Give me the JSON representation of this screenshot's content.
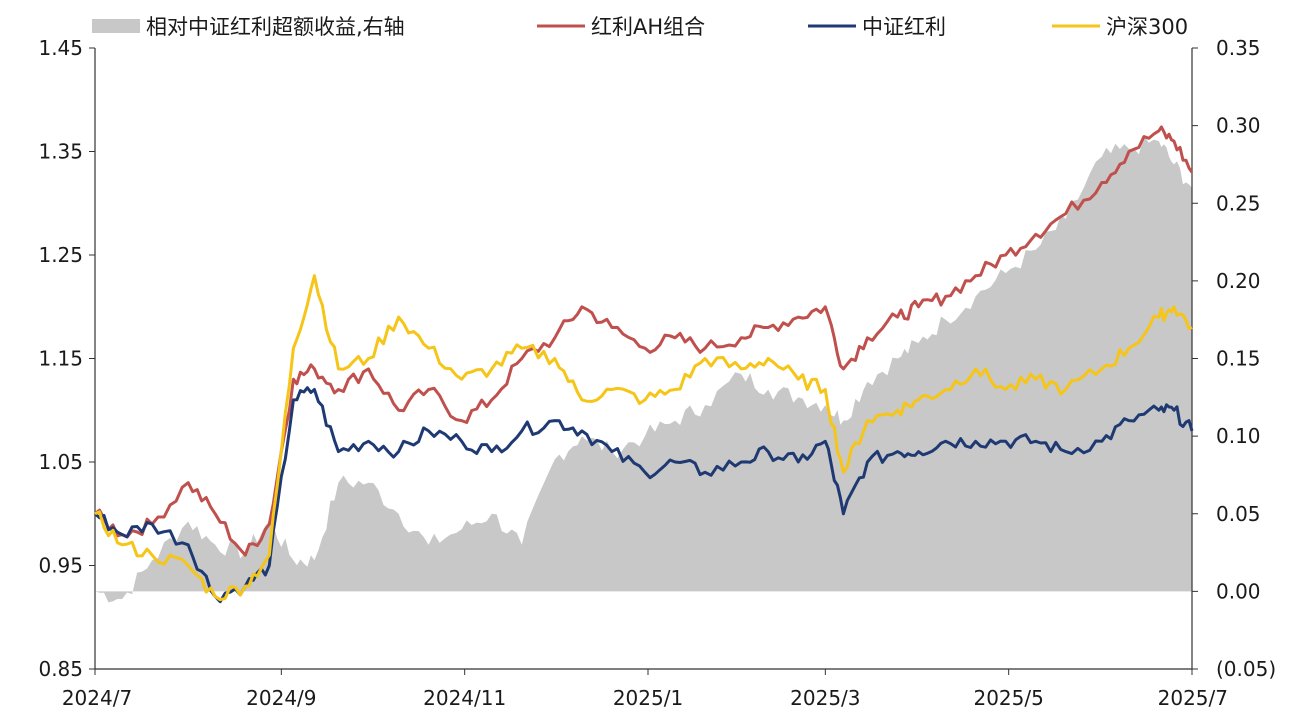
{
  "chart_data": {
    "type": "line",
    "legend_position": "top",
    "grid": false,
    "x_axis": {
      "range": [
        "2024-07",
        "2025-07"
      ],
      "tick_labels": [
        "2024/7",
        "2024/9",
        "2024/11",
        "2025/1",
        "2025/3",
        "2025/5",
        "2025/7"
      ]
    },
    "y_left": {
      "range": [
        0.85,
        1.45
      ],
      "tick_labels": [
        "0.85",
        "0.95",
        "1.05",
        "1.15",
        "1.25",
        "1.35",
        "1.45"
      ]
    },
    "y_right": {
      "range": [
        -0.05,
        0.35
      ],
      "tick_labels": [
        "(0.05)",
        "0.00",
        "0.05",
        "0.10",
        "0.15",
        "0.20",
        "0.25",
        "0.30",
        "0.35"
      ],
      "negative_color": "#c0392b"
    },
    "series": [
      {
        "name": "相对中证红利超额收益,右轴",
        "kind": "area",
        "axis": "right",
        "color": "#c8c8c8",
        "x": [
          "2024-07-01",
          "2024-07-10",
          "2024-07-20",
          "2024-08-01",
          "2024-08-10",
          "2024-08-20",
          "2024-08-28",
          "2024-09-05",
          "2024-09-12",
          "2024-09-20",
          "2024-09-30",
          "2024-10-10",
          "2024-10-20",
          "2024-10-31",
          "2024-11-10",
          "2024-11-20",
          "2024-12-01",
          "2024-12-10",
          "2024-12-20",
          "2024-12-31",
          "2025-01-10",
          "2025-01-20",
          "2025-02-01",
          "2025-02-10",
          "2025-02-20",
          "2025-03-01",
          "2025-03-07",
          "2025-03-15",
          "2025-03-25",
          "2025-04-01",
          "2025-04-10",
          "2025-04-20",
          "2025-04-30",
          "2025-05-10",
          "2025-05-20",
          "2025-06-01",
          "2025-06-10",
          "2025-06-20",
          "2025-06-25",
          "2025-07-01"
        ],
        "values": [
          0.0,
          -0.005,
          0.02,
          0.045,
          0.03,
          0.025,
          0.045,
          0.02,
          0.02,
          0.07,
          0.07,
          0.05,
          0.03,
          0.04,
          0.05,
          0.03,
          0.085,
          0.1,
          0.09,
          0.1,
          0.11,
          0.12,
          0.14,
          0.13,
          0.125,
          0.12,
          0.11,
          0.135,
          0.15,
          0.16,
          0.175,
          0.19,
          0.205,
          0.22,
          0.24,
          0.28,
          0.285,
          0.29,
          0.275,
          0.26
        ]
      },
      {
        "name": "红利AH组合",
        "kind": "line",
        "axis": "left",
        "color": "#c0504d",
        "x": [
          "2024-07-01",
          "2024-07-10",
          "2024-07-20",
          "2024-08-01",
          "2024-08-10",
          "2024-08-20",
          "2024-08-28",
          "2024-09-05",
          "2024-09-12",
          "2024-09-20",
          "2024-09-30",
          "2024-10-10",
          "2024-10-20",
          "2024-10-31",
          "2024-11-10",
          "2024-11-20",
          "2024-12-01",
          "2024-12-10",
          "2024-12-20",
          "2024-12-31",
          "2025-01-10",
          "2025-01-20",
          "2025-02-01",
          "2025-02-10",
          "2025-02-20",
          "2025-03-01",
          "2025-03-07",
          "2025-03-15",
          "2025-03-25",
          "2025-04-01",
          "2025-04-10",
          "2025-04-20",
          "2025-04-30",
          "2025-05-10",
          "2025-05-20",
          "2025-06-01",
          "2025-06-10",
          "2025-06-20",
          "2025-06-25",
          "2025-07-01"
        ],
        "values": [
          1.0,
          0.98,
          0.99,
          1.03,
          1.0,
          0.96,
          0.99,
          1.13,
          1.14,
          1.12,
          1.14,
          1.1,
          1.12,
          1.09,
          1.11,
          1.15,
          1.17,
          1.2,
          1.18,
          1.16,
          1.17,
          1.16,
          1.17,
          1.18,
          1.19,
          1.2,
          1.14,
          1.17,
          1.19,
          1.2,
          1.21,
          1.23,
          1.25,
          1.27,
          1.29,
          1.32,
          1.35,
          1.37,
          1.36,
          1.33
        ]
      },
      {
        "name": "中证红利",
        "kind": "line",
        "axis": "left",
        "color": "#1f3a73",
        "x": [
          "2024-07-01",
          "2024-07-10",
          "2024-07-20",
          "2024-08-01",
          "2024-08-10",
          "2024-08-20",
          "2024-08-28",
          "2024-09-05",
          "2024-09-12",
          "2024-09-20",
          "2024-09-30",
          "2024-10-10",
          "2024-10-20",
          "2024-10-31",
          "2024-11-10",
          "2024-11-20",
          "2024-12-01",
          "2024-12-10",
          "2024-12-20",
          "2024-12-31",
          "2025-01-10",
          "2025-01-20",
          "2025-02-01",
          "2025-02-10",
          "2025-02-20",
          "2025-03-01",
          "2025-03-07",
          "2025-03-15",
          "2025-03-25",
          "2025-04-01",
          "2025-04-10",
          "2025-04-20",
          "2025-04-30",
          "2025-05-10",
          "2025-05-20",
          "2025-06-01",
          "2025-06-10",
          "2025-06-20",
          "2025-06-25",
          "2025-07-01"
        ],
        "values": [
          1.0,
          0.98,
          0.99,
          0.97,
          0.92,
          0.93,
          0.95,
          1.11,
          1.12,
          1.06,
          1.07,
          1.06,
          1.08,
          1.07,
          1.06,
          1.08,
          1.09,
          1.08,
          1.06,
          1.04,
          1.05,
          1.04,
          1.05,
          1.06,
          1.05,
          1.07,
          1.0,
          1.05,
          1.06,
          1.06,
          1.07,
          1.07,
          1.07,
          1.07,
          1.06,
          1.07,
          1.09,
          1.1,
          1.1,
          1.08
        ]
      },
      {
        "name": "沪深300",
        "kind": "line",
        "axis": "left",
        "color": "#f5c518",
        "x": [
          "2024-07-01",
          "2024-07-10",
          "2024-07-20",
          "2024-08-01",
          "2024-08-10",
          "2024-08-20",
          "2024-08-28",
          "2024-09-05",
          "2024-09-12",
          "2024-09-20",
          "2024-09-30",
          "2024-10-10",
          "2024-10-20",
          "2024-10-31",
          "2024-11-10",
          "2024-11-20",
          "2024-12-01",
          "2024-12-10",
          "2024-12-20",
          "2024-12-31",
          "2025-01-10",
          "2025-01-20",
          "2025-02-01",
          "2025-02-10",
          "2025-02-20",
          "2025-03-01",
          "2025-03-07",
          "2025-03-15",
          "2025-03-25",
          "2025-04-01",
          "2025-04-10",
          "2025-04-20",
          "2025-04-30",
          "2025-05-10",
          "2025-05-20",
          "2025-06-01",
          "2025-06-10",
          "2025-06-20",
          "2025-06-25",
          "2025-07-01"
        ],
        "values": [
          1.0,
          0.97,
          0.96,
          0.95,
          0.92,
          0.93,
          0.96,
          1.16,
          1.23,
          1.14,
          1.15,
          1.19,
          1.16,
          1.13,
          1.14,
          1.16,
          1.15,
          1.11,
          1.12,
          1.11,
          1.12,
          1.15,
          1.14,
          1.15,
          1.13,
          1.12,
          1.04,
          1.09,
          1.1,
          1.11,
          1.12,
          1.14,
          1.12,
          1.13,
          1.12,
          1.14,
          1.16,
          1.19,
          1.2,
          1.18
        ]
      }
    ]
  }
}
